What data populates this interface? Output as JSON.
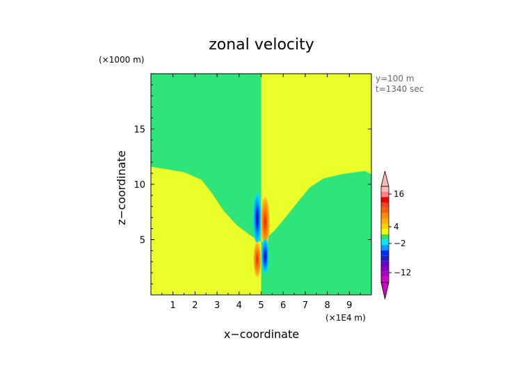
{
  "chart_data": {
    "type": "heatmap",
    "title": "zonal velocity",
    "xlabel": "x−coordinate",
    "ylabel": "z−coordinate",
    "x_unit": "(×1E4 m)",
    "y_unit": "(×1000 m)",
    "annotations": [
      "y=100  m",
      "t=1340 sec"
    ],
    "xlim": [
      0,
      10
    ],
    "ylim": [
      0,
      20
    ],
    "x_ticks": [
      1,
      2,
      3,
      4,
      5,
      6,
      7,
      8,
      9
    ],
    "y_ticks": [
      5,
      10,
      15
    ],
    "colorbar": {
      "labels": [
        16,
        4,
        -2,
        -12
      ],
      "colors": [
        "#ffb6b6",
        "#ff8080",
        "#f00000",
        "#ff4020",
        "#ff6000",
        "#ff8a00",
        "#ffb000",
        "#ffd000",
        "#eaff00",
        "#30e070",
        "#00e8ff",
        "#00a0ff",
        "#0030ff",
        "#2020c0",
        "#6a00c8",
        "#9000c0",
        "#b000c8",
        "#d000c8"
      ]
    },
    "background": {
      "upper_left": "#2ee57a",
      "upper_right": "#eaff2a",
      "lower_left": "#eaff2a",
      "lower_right": "#2ee57a",
      "divide_x": 5.0,
      "interface_z": [
        [
          0.0,
          11.6
        ],
        [
          0.6,
          11.4
        ],
        [
          1.5,
          11.1
        ],
        [
          2.3,
          10.4
        ],
        [
          2.8,
          9.1
        ],
        [
          3.3,
          7.6
        ],
        [
          3.9,
          6.3
        ],
        [
          4.5,
          5.4
        ],
        [
          4.9,
          4.9
        ],
        [
          5.0,
          4.8
        ],
        [
          5.1,
          4.9
        ],
        [
          5.6,
          5.8
        ],
        [
          6.1,
          7.0
        ],
        [
          6.7,
          8.5
        ],
        [
          7.2,
          9.7
        ],
        [
          7.8,
          10.5
        ],
        [
          8.6,
          10.9
        ],
        [
          9.3,
          11.1
        ],
        [
          9.7,
          11.2
        ],
        [
          10.0,
          10.9
        ]
      ]
    },
    "cells": [
      {
        "x": 4.82,
        "z": 6.9,
        "rx": 0.18,
        "rz": 2.3,
        "sign": "negative"
      },
      {
        "x": 5.18,
        "z": 6.6,
        "rx": 0.2,
        "rz": 2.3,
        "sign": "positive"
      },
      {
        "x": 4.82,
        "z": 3.2,
        "rx": 0.17,
        "rz": 1.6,
        "sign": "positive"
      },
      {
        "x": 5.18,
        "z": 3.5,
        "rx": 0.16,
        "rz": 1.6,
        "sign": "negative"
      }
    ]
  }
}
